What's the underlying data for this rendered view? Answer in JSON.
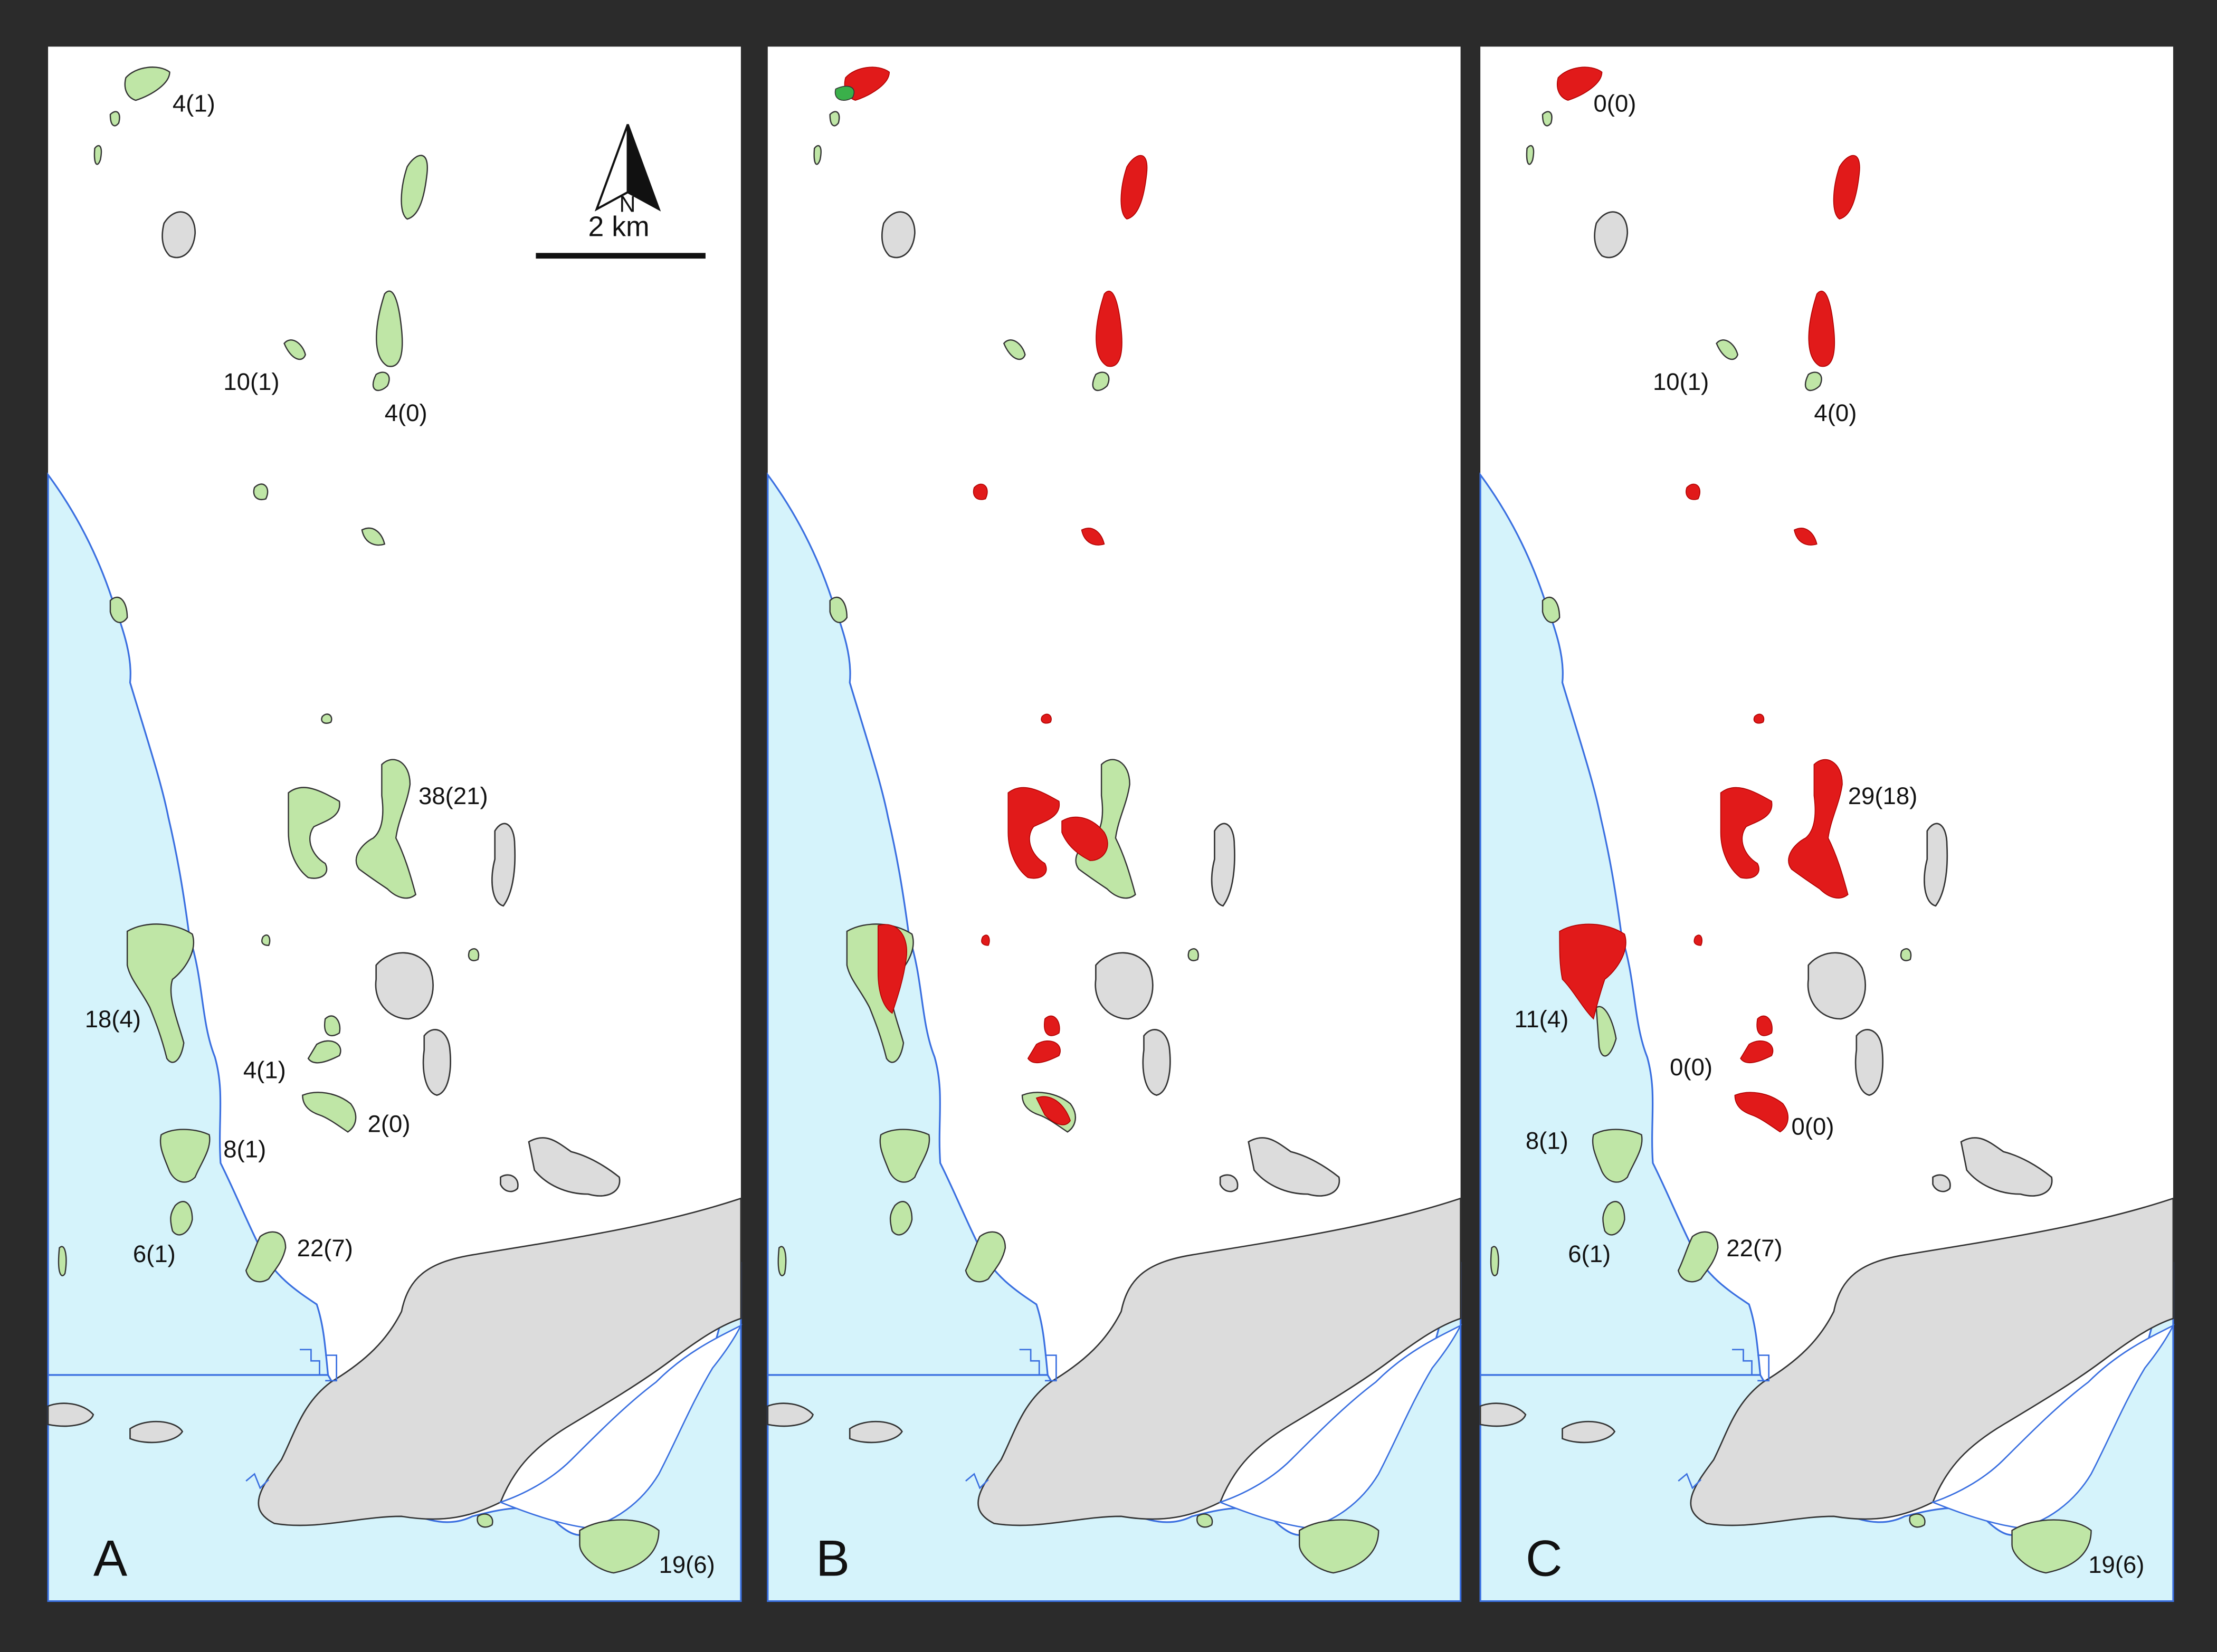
{
  "colors": {
    "frame": "#2b2b2b",
    "sea": "#d5f3fb",
    "coast": "#3a6fe0",
    "land_gray": "#dcdcdc",
    "habitat_green": "#bfe6a6",
    "lost_red": "#e11a1a",
    "outline": "#333333"
  },
  "legend": {
    "north": "N",
    "scale": "2 km"
  },
  "panels": [
    {
      "letter": "A",
      "labels": {
        "p1": "4(1)",
        "p2": "10(1)",
        "p3": "4(0)",
        "p4": "38(21)",
        "p5": "18(4)",
        "p6": "4(1)",
        "p7": "2(0)",
        "p8": "8(1)",
        "p9": "6(1)",
        "p10": "22(7)",
        "p11": "19(6)"
      }
    },
    {
      "letter": "B",
      "labels": {}
    },
    {
      "letter": "C",
      "labels": {
        "p1": "0(0)",
        "p2": "10(1)",
        "p3": "4(0)",
        "p4": "29(18)",
        "p5": "11(4)",
        "p6": "0(0)",
        "p7": "0(0)",
        "p8": "8(1)",
        "p9": "6(1)",
        "p10": "22(7)",
        "p11": "19(6)"
      }
    }
  ]
}
